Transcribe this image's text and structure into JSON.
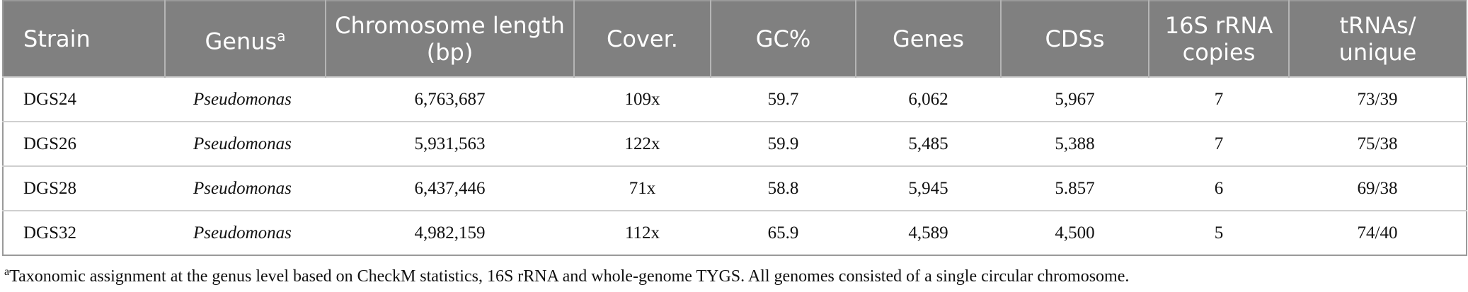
{
  "table": {
    "header": [
      {
        "text": "Strain"
      },
      {
        "text": "Genus",
        "sup": "a"
      },
      {
        "text": "Chromosome length (bp)"
      },
      {
        "text": "Cover."
      },
      {
        "text": "GC%"
      },
      {
        "text": "Genes"
      },
      {
        "text": "CDSs"
      },
      {
        "text": "16S rRNA copies"
      },
      {
        "text": "tRNAs/ unique"
      }
    ],
    "rows": [
      [
        "DGS24",
        "Pseudomonas",
        "6,763,687",
        "109x",
        "59.7",
        "6,062",
        "5,967",
        "7",
        "73/39"
      ],
      [
        "DGS26",
        "Pseudomonas",
        "5,931,563",
        "122x",
        "59.9",
        "5,485",
        "5,388",
        "7",
        "75/38"
      ],
      [
        "DGS28",
        "Pseudomonas",
        "6,437,446",
        "71x",
        "58.8",
        "5,945",
        "5.857",
        "6",
        "69/38"
      ],
      [
        "DGS32",
        "Pseudomonas",
        "4,982,159",
        "112x",
        "65.9",
        "4,589",
        "4,500",
        "5",
        "74/40"
      ]
    ]
  },
  "footnote": {
    "mark": "a",
    "text": "Taxonomic assignment at the genus level based on CheckM statistics, 16S rRNA and whole-genome TYGS. All genomes consisted of a single circular chromosome."
  }
}
